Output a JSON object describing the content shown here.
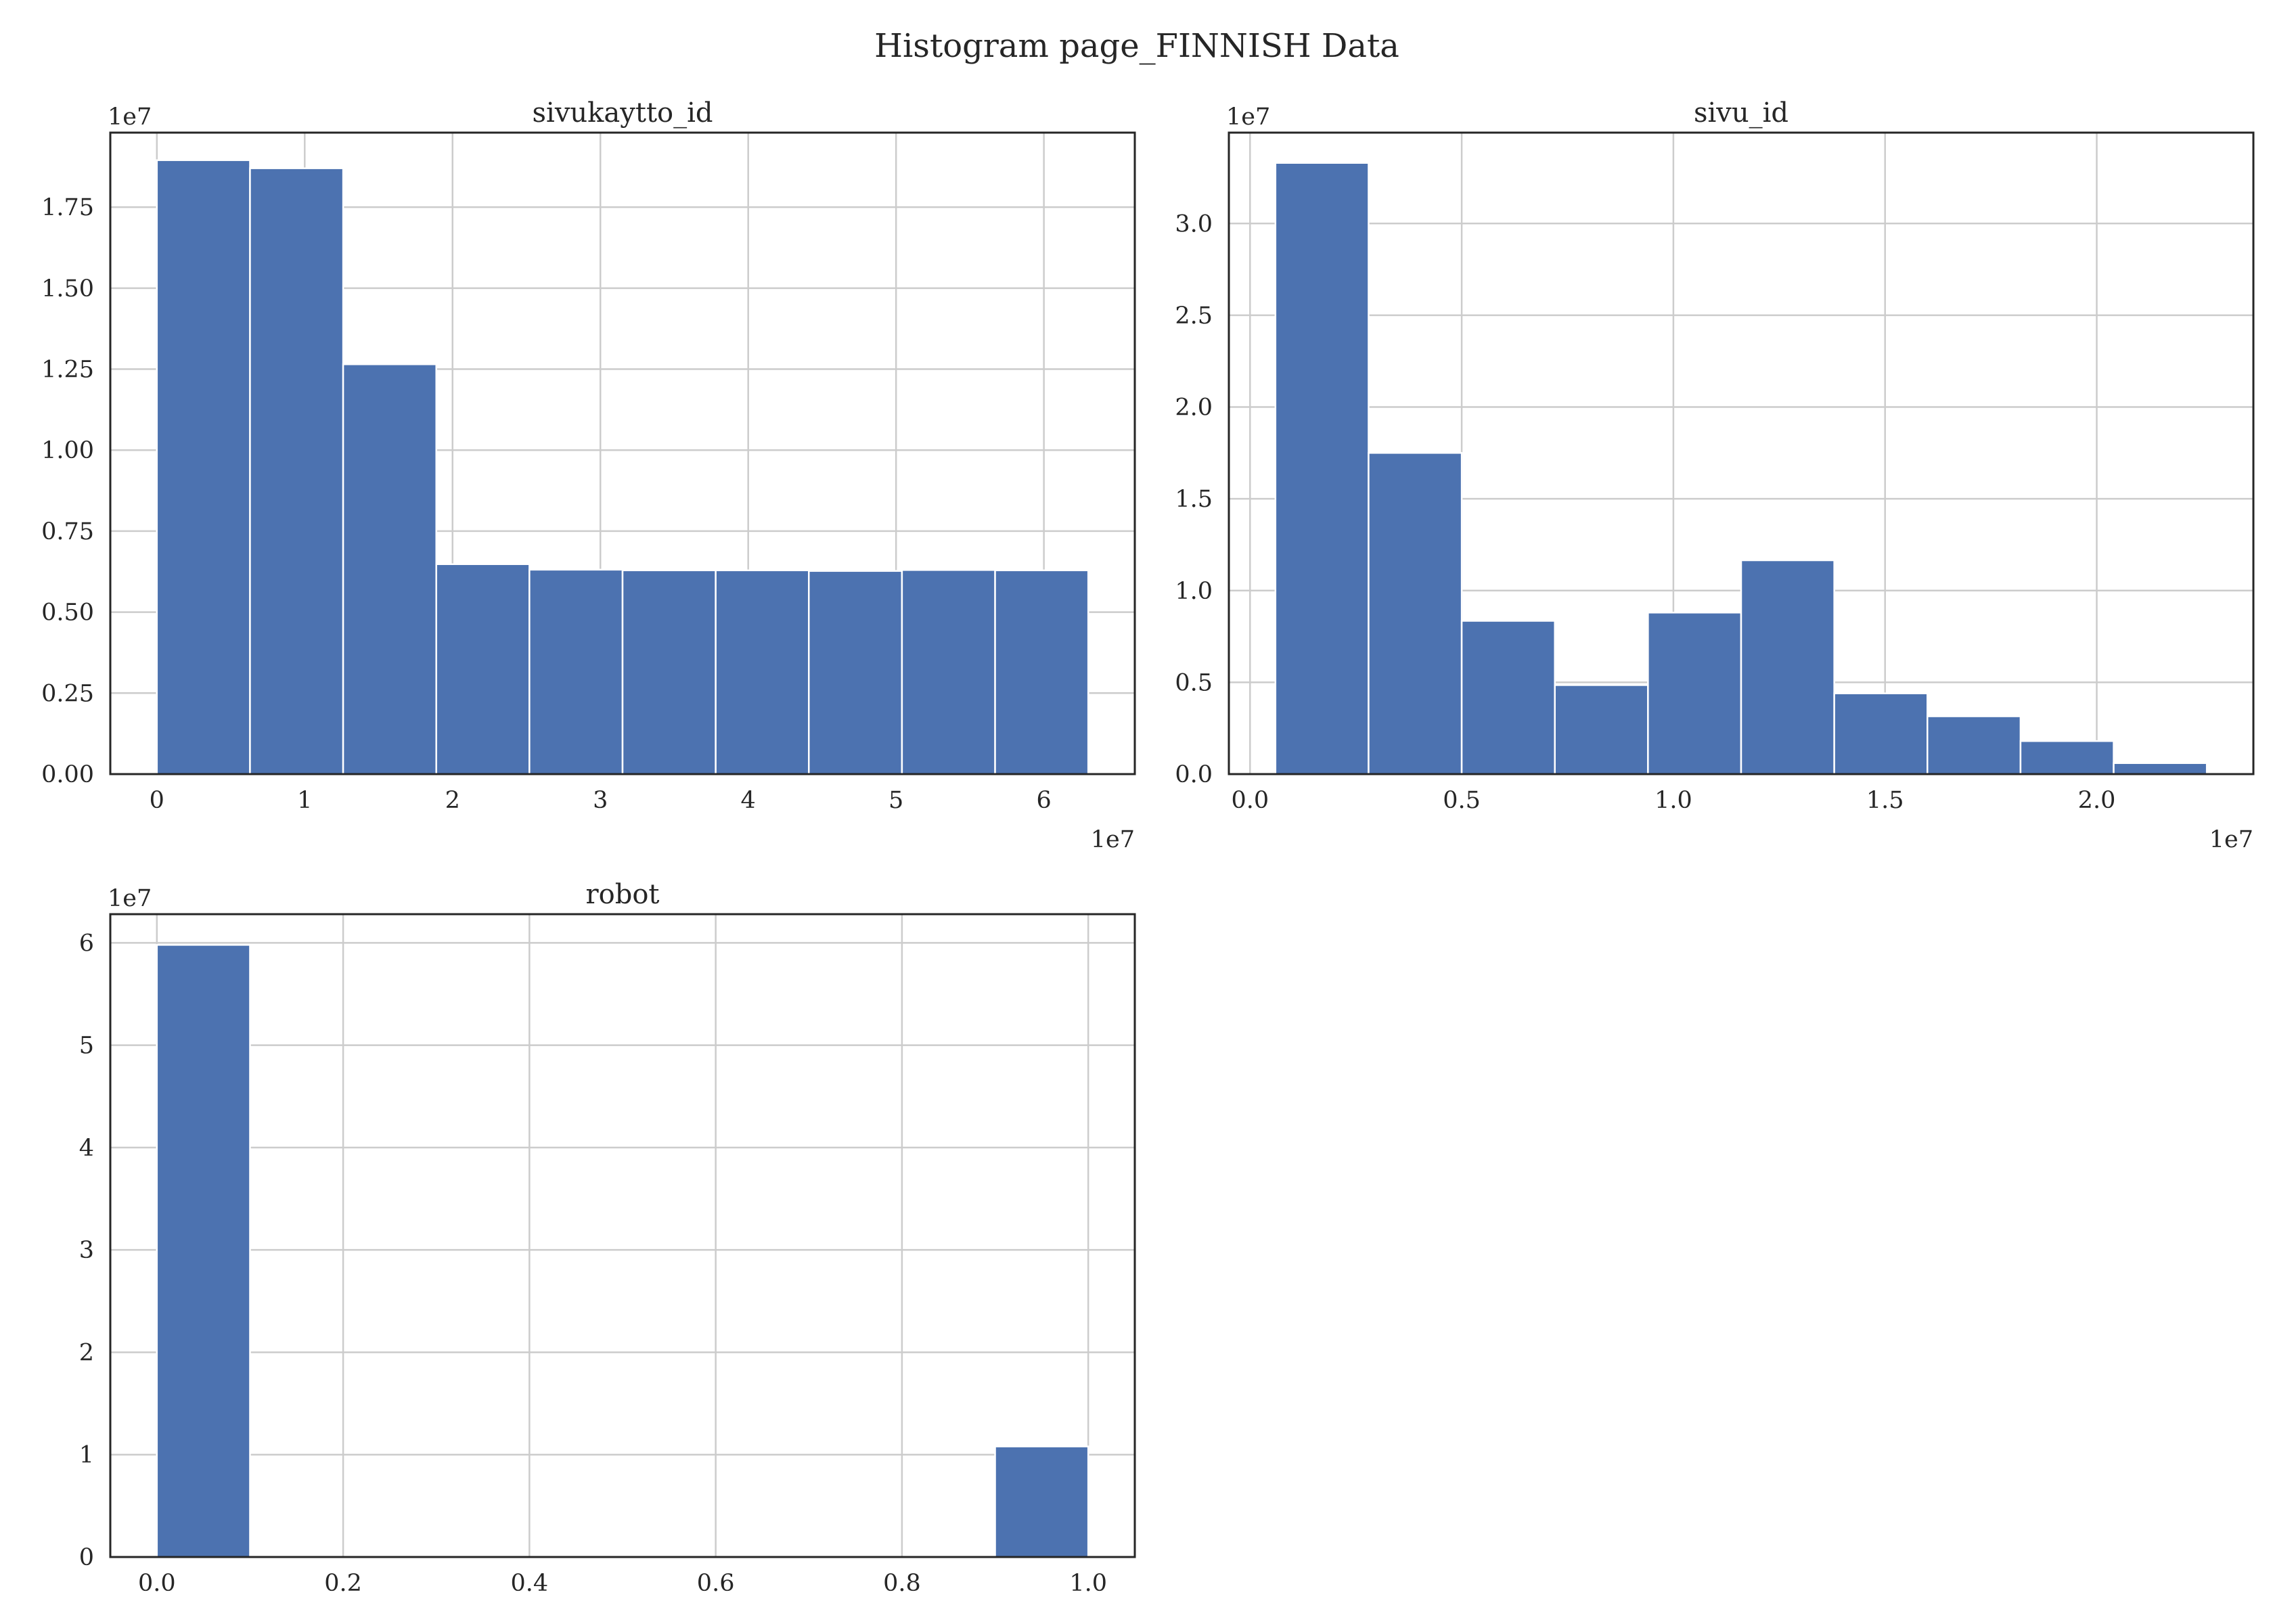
{
  "figure": {
    "title": "Histogram page_FINNISH Data"
  },
  "colors": {
    "bar": "#4c72b0",
    "grid": "#cccccc",
    "axis": "#262626",
    "background": "#ffffff"
  },
  "chart_data": [
    {
      "type": "bar",
      "title": "sivukaytto_id",
      "bin_edges": [
        0,
        6300000,
        12600000,
        18900000,
        25200000,
        31500000,
        37800000,
        44100000,
        50400000,
        56700000,
        63000000
      ],
      "values": [
        18950000,
        18700000,
        12650000,
        6480000,
        6310000,
        6290000,
        6290000,
        6270000,
        6300000,
        6290000
      ],
      "xlim": [
        -3150000,
        66150000
      ],
      "ylim": [
        0,
        19800000
      ],
      "xticks": [
        0,
        10000000,
        20000000,
        30000000,
        40000000,
        50000000,
        60000000
      ],
      "xtick_labels": [
        "0",
        "1",
        "2",
        "3",
        "4",
        "5",
        "6"
      ],
      "yticks": [
        0,
        2500000,
        5000000,
        7500000,
        10000000,
        12500000,
        15000000,
        17500000
      ],
      "ytick_labels": [
        "0.00",
        "0.25",
        "0.50",
        "0.75",
        "1.00",
        "1.25",
        "1.50",
        "1.75"
      ],
      "x_offset_label": "1e7",
      "y_offset_label": "1e7",
      "xlabel": "",
      "ylabel": "",
      "grid": true
    },
    {
      "type": "bar",
      "title": "sivu_id",
      "bin_edges": [
        600000,
        2800000,
        5000000,
        7200000,
        9400000,
        11600000,
        13800000,
        16000000,
        18200000,
        20400000,
        22600000
      ],
      "values": [
        33300000,
        17500000,
        8350000,
        4850000,
        8800000,
        11650000,
        4400000,
        3150000,
        1800000,
        600000
      ],
      "xlim": [
        -500000,
        23700000
      ],
      "ylim": [
        0,
        34950000
      ],
      "xticks": [
        0,
        5000000,
        10000000,
        15000000,
        20000000
      ],
      "xtick_labels": [
        "0.0",
        "0.5",
        "1.0",
        "1.5",
        "2.0"
      ],
      "yticks": [
        0,
        5000000,
        10000000,
        15000000,
        20000000,
        25000000,
        30000000
      ],
      "ytick_labels": [
        "0.0",
        "0.5",
        "1.0",
        "1.5",
        "2.0",
        "2.5",
        "3.0"
      ],
      "x_offset_label": "1e7",
      "y_offset_label": "1e7",
      "xlabel": "",
      "ylabel": "",
      "grid": true
    },
    {
      "type": "bar",
      "title": "robot",
      "bin_edges": [
        0,
        0.1,
        0.2,
        0.3,
        0.4,
        0.5,
        0.6,
        0.7,
        0.8,
        0.9,
        1.0
      ],
      "values": [
        59800000,
        0,
        0,
        0,
        0,
        0,
        0,
        0,
        0,
        10800000
      ],
      "xlim": [
        -0.05,
        1.05
      ],
      "ylim": [
        0,
        62800000
      ],
      "xticks": [
        0,
        0.2,
        0.4,
        0.6,
        0.8,
        1.0
      ],
      "xtick_labels": [
        "0.0",
        "0.2",
        "0.4",
        "0.6",
        "0.8",
        "1.0"
      ],
      "yticks": [
        0,
        10000000,
        20000000,
        30000000,
        40000000,
        50000000,
        60000000
      ],
      "ytick_labels": [
        "0",
        "1",
        "2",
        "3",
        "4",
        "5",
        "6"
      ],
      "x_offset_label": "",
      "y_offset_label": "1e7",
      "xlabel": "",
      "ylabel": "",
      "grid": true
    }
  ]
}
